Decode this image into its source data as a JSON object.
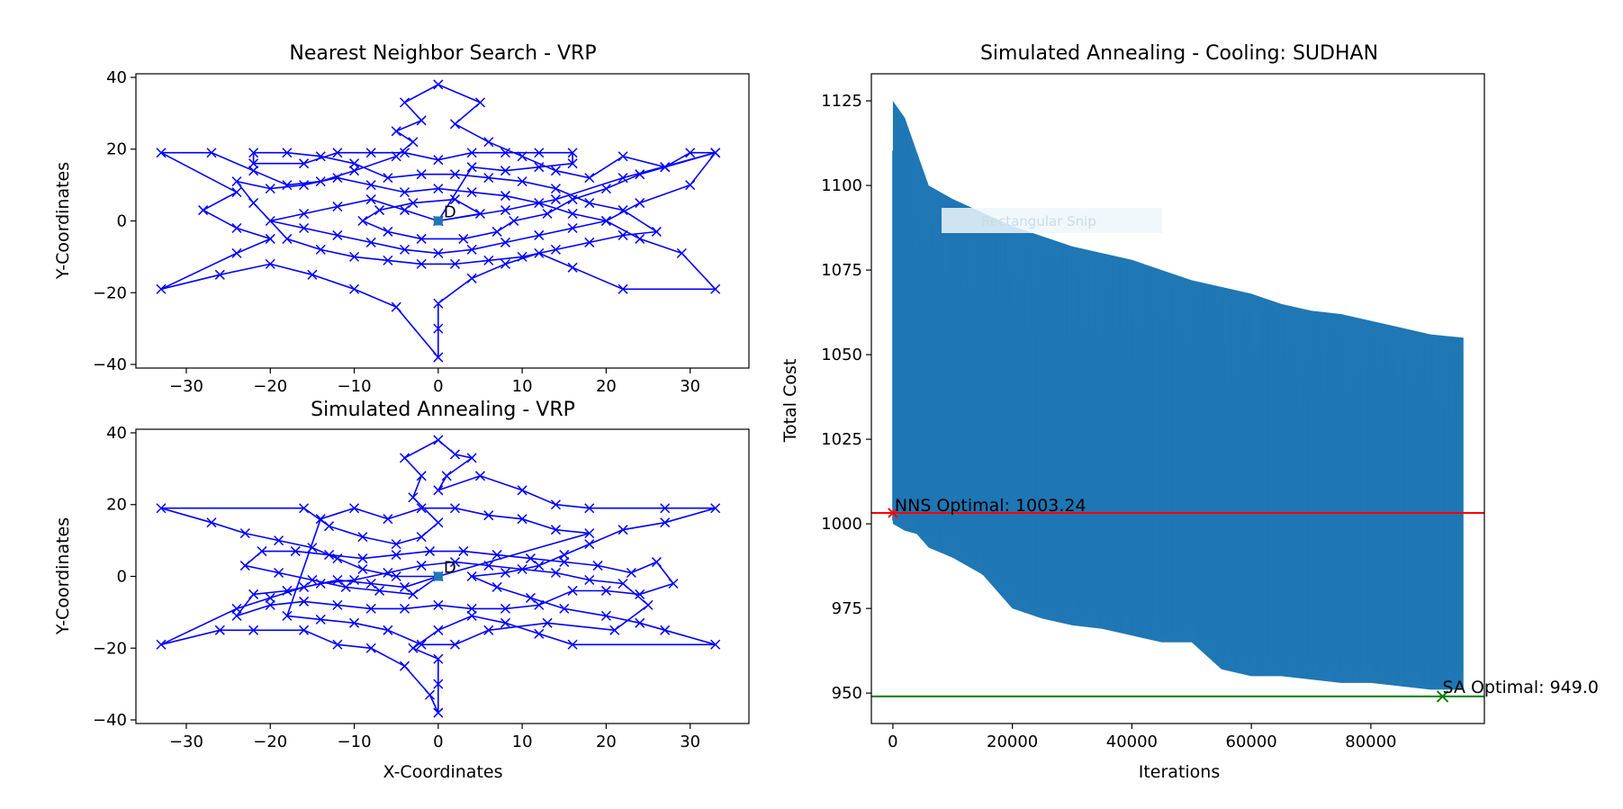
{
  "chart_data": [
    {
      "type": "line",
      "title": "Nearest Neighbor Search - VRP",
      "xlabel": "",
      "ylabel": "Y-Coordinates",
      "xlim": [
        -36,
        37
      ],
      "ylim": [
        -41,
        41
      ],
      "xticks": [
        -30,
        -20,
        -10,
        0,
        10,
        20,
        30
      ],
      "yticks": [
        -40,
        -20,
        0,
        20,
        40
      ],
      "x_tick_labels": [
        "−30",
        "−20",
        "−10",
        "0",
        "10",
        "20",
        "30"
      ],
      "y_tick_labels": [
        "−40",
        "−20",
        "0",
        "20",
        "40"
      ],
      "marker": "x",
      "color": "#0000ff",
      "depot": {
        "x": 0,
        "y": 0,
        "label": "D"
      },
      "route": [
        [
          0,
          0
        ],
        [
          5,
          2
        ],
        [
          2,
          6
        ],
        [
          -3,
          5
        ],
        [
          -7,
          3
        ],
        [
          -9,
          0
        ],
        [
          -6,
          -3
        ],
        [
          -2,
          -5
        ],
        [
          3,
          -5
        ],
        [
          7,
          -3
        ],
        [
          9,
          0
        ],
        [
          13,
          2
        ],
        [
          16,
          6
        ],
        [
          20,
          9
        ],
        [
          24,
          13
        ],
        [
          27,
          15
        ],
        [
          33,
          19
        ],
        [
          30,
          10
        ],
        [
          24,
          5
        ],
        [
          20,
          0
        ],
        [
          24,
          -5
        ],
        [
          29,
          -9
        ],
        [
          33,
          -19
        ],
        [
          22,
          -19
        ],
        [
          16,
          -13
        ],
        [
          12,
          -9
        ],
        [
          8,
          -12
        ],
        [
          4,
          -16
        ],
        [
          0,
          -23
        ],
        [
          0,
          -30
        ],
        [
          0,
          -38
        ],
        [
          -5,
          -24
        ],
        [
          -10,
          -19
        ],
        [
          -15,
          -15
        ],
        [
          -20,
          -12
        ],
        [
          -26,
          -15
        ],
        [
          -33,
          -19
        ],
        [
          -24,
          -9
        ],
        [
          -20,
          -5
        ],
        [
          -24,
          -2
        ],
        [
          -28,
          3
        ],
        [
          -24,
          8
        ],
        [
          -33,
          19
        ],
        [
          -27,
          19
        ],
        [
          -22,
          14
        ],
        [
          -18,
          10
        ],
        [
          -14,
          11
        ],
        [
          -10,
          14
        ],
        [
          -5,
          18
        ],
        [
          -3,
          22
        ],
        [
          -5,
          25
        ],
        [
          -2,
          28
        ],
        [
          -4,
          33
        ],
        [
          0,
          38
        ],
        [
          5,
          33
        ],
        [
          2,
          27
        ],
        [
          6,
          22
        ],
        [
          10,
          18
        ],
        [
          14,
          14
        ],
        [
          18,
          12
        ],
        [
          22,
          18
        ],
        [
          27,
          15
        ],
        [
          30,
          19
        ],
        [
          33,
          19
        ],
        [
          22,
          12
        ],
        [
          14,
          6
        ],
        [
          8,
          3
        ],
        [
          0,
          0
        ]
      ],
      "route2": [
        [
          0,
          0
        ],
        [
          -4,
          3
        ],
        [
          -8,
          6
        ],
        [
          -12,
          4
        ],
        [
          -16,
          2
        ],
        [
          -20,
          0
        ],
        [
          -16,
          -2
        ],
        [
          -12,
          -4
        ],
        [
          -8,
          -6
        ],
        [
          -4,
          -8
        ],
        [
          0,
          -9
        ],
        [
          4,
          -8
        ],
        [
          8,
          -6
        ],
        [
          12,
          -4
        ],
        [
          16,
          -2
        ],
        [
          20,
          0
        ],
        [
          16,
          2
        ],
        [
          12,
          5
        ],
        [
          8,
          7
        ],
        [
          4,
          8
        ],
        [
          0,
          9
        ],
        [
          -4,
          8
        ],
        [
          -8,
          10
        ],
        [
          -12,
          12
        ],
        [
          -16,
          10
        ],
        [
          -20,
          9
        ],
        [
          -24,
          11
        ],
        [
          -22,
          5
        ],
        [
          -18,
          -5
        ],
        [
          -14,
          -8
        ],
        [
          -10,
          -10
        ],
        [
          -6,
          -11
        ],
        [
          -2,
          -12
        ],
        [
          2,
          -12
        ],
        [
          6,
          -11
        ],
        [
          10,
          -10
        ],
        [
          14,
          -8
        ],
        [
          18,
          -6
        ],
        [
          22,
          -4
        ],
        [
          26,
          -3
        ],
        [
          22,
          3
        ],
        [
          18,
          5
        ],
        [
          14,
          9
        ],
        [
          10,
          11
        ],
        [
          6,
          12
        ],
        [
          2,
          13
        ],
        [
          -2,
          13
        ],
        [
          -6,
          12
        ],
        [
          -10,
          16
        ],
        [
          -14,
          18
        ],
        [
          -18,
          19
        ],
        [
          -22,
          19
        ],
        [
          -22,
          16
        ],
        [
          -16,
          16
        ],
        [
          -12,
          19
        ],
        [
          -8,
          19
        ],
        [
          -4,
          19
        ],
        [
          0,
          17
        ],
        [
          4,
          19
        ],
        [
          8,
          19
        ],
        [
          12,
          19
        ],
        [
          16,
          19
        ],
        [
          16,
          16
        ],
        [
          12,
          15
        ],
        [
          8,
          14
        ],
        [
          4,
          15
        ],
        [
          0,
          0
        ]
      ]
    },
    {
      "type": "line",
      "title": "Simulated Annealing - VRP",
      "xlabel": "X-Coordinates",
      "ylabel": "Y-Coordinates",
      "xlim": [
        -36,
        37
      ],
      "ylim": [
        -41,
        41
      ],
      "xticks": [
        -30,
        -20,
        -10,
        0,
        10,
        20,
        30
      ],
      "yticks": [
        -40,
        -20,
        0,
        20,
        40
      ],
      "x_tick_labels": [
        "−30",
        "−20",
        "−10",
        "0",
        "10",
        "20",
        "30"
      ],
      "y_tick_labels": [
        "−40",
        "−20",
        "0",
        "20",
        "40"
      ],
      "marker": "x",
      "color": "#0000ff",
      "depot": {
        "x": 0,
        "y": 0,
        "label": "D"
      },
      "route": [
        [
          0,
          0
        ],
        [
          -5,
          0
        ],
        [
          -9,
          2
        ],
        [
          -12,
          5
        ],
        [
          -15,
          8
        ],
        [
          -19,
          10
        ],
        [
          -23,
          12
        ],
        [
          -27,
          15
        ],
        [
          -33,
          19
        ],
        [
          -16,
          19
        ],
        [
          -13,
          14
        ],
        [
          -9,
          11
        ],
        [
          -5,
          9
        ],
        [
          -2,
          11
        ],
        [
          0,
          15
        ],
        [
          -3,
          22
        ],
        [
          -2,
          28
        ],
        [
          -4,
          33
        ],
        [
          0,
          38
        ],
        [
          2,
          34
        ],
        [
          4,
          33
        ],
        [
          1,
          28
        ],
        [
          0,
          24
        ],
        [
          5,
          28
        ],
        [
          10,
          24
        ],
        [
          14,
          20
        ],
        [
          18,
          19
        ],
        [
          27,
          19
        ],
        [
          33,
          19
        ],
        [
          27,
          15
        ],
        [
          22,
          13
        ],
        [
          18,
          9
        ],
        [
          15,
          6
        ],
        [
          12,
          3
        ],
        [
          8,
          1
        ],
        [
          4,
          0
        ],
        [
          7,
          -3
        ],
        [
          11,
          -6
        ],
        [
          15,
          -9
        ],
        [
          20,
          -11
        ],
        [
          24,
          -13
        ],
        [
          27,
          -15
        ],
        [
          33,
          -19
        ],
        [
          16,
          -19
        ],
        [
          12,
          -16
        ],
        [
          8,
          -13
        ],
        [
          4,
          -11
        ],
        [
          0,
          -15
        ],
        [
          -3,
          -20
        ],
        [
          0,
          -23
        ],
        [
          0,
          -30
        ],
        [
          0,
          -38
        ],
        [
          -1,
          -33
        ],
        [
          -4,
          -25
        ],
        [
          -8,
          -20
        ],
        [
          -12,
          -19
        ],
        [
          -16,
          -15
        ],
        [
          -22,
          -15
        ],
        [
          -26,
          -15
        ],
        [
          -33,
          -19
        ],
        [
          -24,
          -9
        ],
        [
          -20,
          -6
        ],
        [
          -16,
          -3
        ],
        [
          -12,
          -1
        ],
        [
          -8,
          -2
        ],
        [
          -4,
          -3
        ],
        [
          0,
          0
        ]
      ],
      "route2": [
        [
          0,
          0
        ],
        [
          -3,
          -5
        ],
        [
          -7,
          -4
        ],
        [
          -11,
          -3
        ],
        [
          -15,
          -1
        ],
        [
          -19,
          1
        ],
        [
          -23,
          3
        ],
        [
          -21,
          7
        ],
        [
          -17,
          7
        ],
        [
          -13,
          6
        ],
        [
          -9,
          5
        ],
        [
          -5,
          6
        ],
        [
          -1,
          7
        ],
        [
          3,
          7
        ],
        [
          7,
          6
        ],
        [
          11,
          5
        ],
        [
          15,
          4
        ],
        [
          19,
          3
        ],
        [
          23,
          1
        ],
        [
          26,
          4
        ],
        [
          28,
          -2
        ],
        [
          24,
          -5
        ],
        [
          20,
          -4
        ],
        [
          16,
          -4
        ],
        [
          12,
          -8
        ],
        [
          8,
          -9
        ],
        [
          4,
          -9
        ],
        [
          0,
          -8
        ],
        [
          -4,
          -9
        ],
        [
          -8,
          -9
        ],
        [
          -12,
          -8
        ],
        [
          -16,
          -7
        ],
        [
          -20,
          -8
        ],
        [
          -24,
          -11
        ],
        [
          -22,
          -5
        ],
        [
          -18,
          -4
        ],
        [
          -14,
          -2
        ],
        [
          -10,
          -1
        ],
        [
          -6,
          1
        ],
        [
          -2,
          3
        ],
        [
          2,
          4
        ],
        [
          6,
          3
        ],
        [
          10,
          2
        ],
        [
          14,
          1
        ],
        [
          18,
          -1
        ],
        [
          22,
          -2
        ],
        [
          25,
          -8
        ],
        [
          21,
          -15
        ],
        [
          13,
          -13
        ],
        [
          6,
          -15
        ],
        [
          2,
          -19
        ],
        [
          -2,
          -19
        ],
        [
          -6,
          -15
        ],
        [
          -10,
          -13
        ],
        [
          -14,
          -12
        ],
        [
          -18,
          -11
        ],
        [
          -14,
          16
        ],
        [
          -10,
          19
        ],
        [
          -6,
          16
        ],
        [
          -2,
          19
        ],
        [
          2,
          19
        ],
        [
          6,
          17
        ],
        [
          10,
          16
        ],
        [
          14,
          13
        ],
        [
          18,
          12
        ],
        [
          0,
          0
        ]
      ]
    },
    {
      "type": "line",
      "title": "Simulated Annealing - Cooling: SUDHAN",
      "xlabel": "Iterations",
      "ylabel": "Total Cost",
      "xlim": [
        -3600,
        99000
      ],
      "ylim": [
        941,
        1133
      ],
      "xticks": [
        0,
        20000,
        40000,
        60000,
        80000
      ],
      "yticks": [
        950,
        975,
        1000,
        1025,
        1050,
        1075,
        1100,
        1125
      ],
      "x_tick_labels": [
        "0",
        "20000",
        "40000",
        "60000",
        "80000"
      ],
      "y_tick_labels": [
        "950",
        "975",
        "1000",
        "1025",
        "1050",
        "1075",
        "1100",
        "1125"
      ],
      "series_color": "#1f77b4",
      "iterations_max": 95500,
      "series_envelope": {
        "x": [
          0,
          2000,
          4000,
          6000,
          10000,
          15000,
          20000,
          25000,
          30000,
          35000,
          40000,
          45000,
          50000,
          55000,
          60000,
          65000,
          70000,
          75000,
          80000,
          85000,
          90000,
          95500
        ],
        "upper": [
          1125,
          1120,
          1110,
          1100,
          1096,
          1092,
          1088,
          1085,
          1082,
          1080,
          1078,
          1075,
          1072,
          1070,
          1068,
          1065,
          1063,
          1062,
          1060,
          1058,
          1056,
          1055
        ],
        "lower": [
          1000,
          998,
          997,
          993,
          990,
          985,
          975,
          972,
          970,
          969,
          967,
          965,
          965,
          957,
          955,
          955,
          954,
          953,
          953,
          952,
          951,
          951
        ]
      },
      "nns_line": {
        "y": 1003.24,
        "color": "#ff0000",
        "label": "NNS Optimal: 1003.24",
        "marker_x": 0
      },
      "sa_line": {
        "y": 949.0,
        "color": "#008000",
        "label": "SA Optimal: 949.0",
        "marker_x": 92000
      }
    }
  ],
  "overlay": {
    "ghost_text": "Rectangular Snip"
  }
}
